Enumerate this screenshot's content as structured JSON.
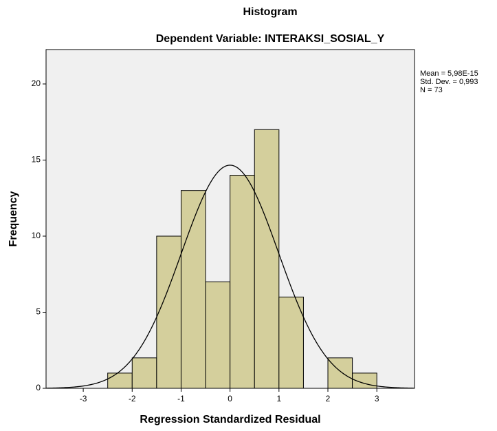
{
  "chart_data": {
    "type": "histogram",
    "title": "Histogram",
    "subtitle": "Dependent Variable: INTERAKSI_SOSIAL_Y",
    "x_label": "Regression Standardized Residual",
    "y_label": "Frequency",
    "bins": [
      -2.5,
      -2,
      -1.5,
      -1,
      -0.5,
      0,
      0.5,
      1,
      1.5,
      2,
      2.5,
      3
    ],
    "values": [
      1,
      2,
      10,
      13,
      7,
      14,
      17,
      6,
      0,
      2,
      1
    ],
    "color": "#d4cf9c",
    "xlim": [
      -3.76,
      3.77
    ],
    "xticks": [
      -3,
      -2,
      -1,
      0,
      1,
      2,
      3
    ],
    "ylim": [
      0,
      22.26
    ],
    "yticks": [
      0,
      5,
      10,
      15,
      20
    ],
    "stats": [
      {
        "value": 5.98e-15,
        "label": "Mean = 5,98E-15"
      },
      {
        "value": 0.993,
        "label": "Std. Dev. = 0,993"
      },
      {
        "value": 73,
        "label": "N = 73"
      }
    ]
  }
}
